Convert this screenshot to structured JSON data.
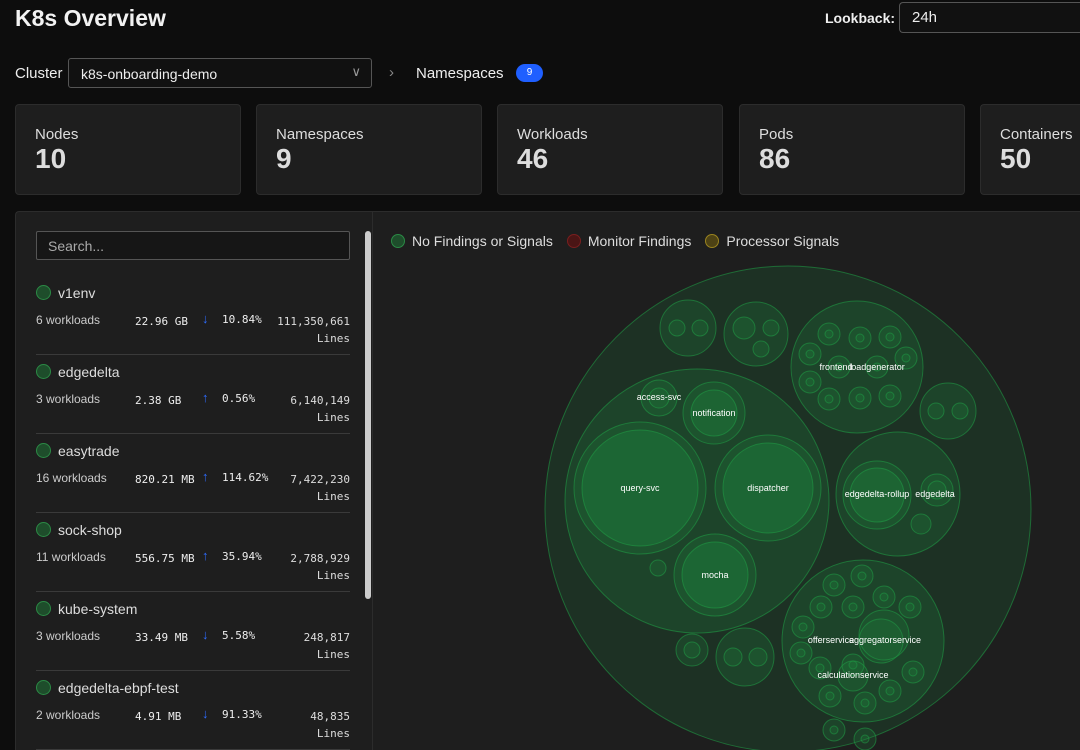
{
  "header": {
    "title": "K8s Overview",
    "lookback_label": "Lookback:",
    "lookback_value": "24h"
  },
  "breadcrumb": {
    "cluster_label": "Cluster",
    "cluster_value": "k8s-onboarding-demo",
    "namespaces_label": "Namespaces",
    "namespaces_count": "9"
  },
  "cards": [
    {
      "label": "Nodes",
      "value": "10"
    },
    {
      "label": "Namespaces",
      "value": "9"
    },
    {
      "label": "Workloads",
      "value": "46"
    },
    {
      "label": "Pods",
      "value": "86"
    },
    {
      "label": "Containers",
      "value": "50"
    }
  ],
  "search": {
    "placeholder": "Search..."
  },
  "namespaces": [
    {
      "name": "v1env",
      "workloads": "6 workloads",
      "size": "22.96 GB",
      "trend": "down",
      "pct": "10.84%",
      "lines": "111,350,661",
      "lines_unit": "Lines"
    },
    {
      "name": "edgedelta",
      "workloads": "3 workloads",
      "size": "2.38 GB",
      "trend": "up",
      "pct": "0.56%",
      "lines": "6,140,149",
      "lines_unit": "Lines"
    },
    {
      "name": "easytrade",
      "workloads": "16 workloads",
      "size": "820.21 MB",
      "trend": "up",
      "pct": "114.62%",
      "lines": "7,422,230",
      "lines_unit": "Lines"
    },
    {
      "name": "sock-shop",
      "workloads": "11 workloads",
      "size": "556.75 MB",
      "trend": "up",
      "pct": "35.94%",
      "lines": "2,788,929",
      "lines_unit": "Lines"
    },
    {
      "name": "kube-system",
      "workloads": "3 workloads",
      "size": "33.49 MB",
      "trend": "down",
      "pct": "5.58%",
      "lines": "248,817",
      "lines_unit": "Lines"
    },
    {
      "name": "edgedelta-ebpf-test",
      "workloads": "2 workloads",
      "size": "4.91 MB",
      "trend": "down",
      "pct": "91.33%",
      "lines": "48,835",
      "lines_unit": "Lines"
    }
  ],
  "legend": [
    {
      "label": "No Findings or Signals",
      "color": "#1e4d2b"
    },
    {
      "label": "Monitor Findings",
      "color": "#4a1515"
    },
    {
      "label": "Processor Signals",
      "color": "#4d4215"
    }
  ],
  "bubble_labels": {
    "query": "query-svc",
    "dispatcher": "dispatcher",
    "mocha": "mocha",
    "notification": "notification",
    "access": "access-svc",
    "frontend": "frontend",
    "loadgen": "loadgenerator",
    "rollup": "edgedelta-rollup",
    "edgedelta": "edgedelta",
    "offer": "offerservice",
    "aggregator": "aggregatorservice",
    "calculation": "calculationservice"
  },
  "colors": {
    "accent": "#1f5fff",
    "healthy": "#2b8a45"
  }
}
